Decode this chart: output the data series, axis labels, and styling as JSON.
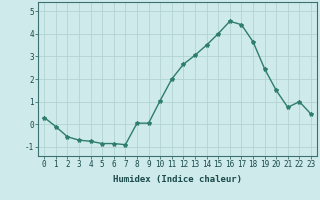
{
  "x": [
    0,
    1,
    2,
    3,
    4,
    5,
    6,
    7,
    8,
    9,
    10,
    11,
    12,
    13,
    14,
    15,
    16,
    17,
    18,
    19,
    20,
    21,
    22,
    23
  ],
  "y": [
    0.3,
    -0.1,
    -0.55,
    -0.7,
    -0.75,
    -0.85,
    -0.85,
    -0.9,
    0.05,
    0.05,
    1.05,
    2.0,
    2.65,
    3.05,
    3.5,
    4.0,
    4.55,
    4.4,
    3.65,
    2.45,
    1.5,
    0.75,
    1.0,
    0.45
  ],
  "line_color": "#2e7d6e",
  "marker": "*",
  "marker_size": 3,
  "bg_color": "#ceeaea",
  "grid_color": "#aed0d0",
  "xlabel": "Humidex (Indice chaleur)",
  "xlim": [
    -0.5,
    23.5
  ],
  "ylim": [
    -1.4,
    5.4
  ],
  "xticks": [
    0,
    1,
    2,
    3,
    4,
    5,
    6,
    7,
    8,
    9,
    10,
    11,
    12,
    13,
    14,
    15,
    16,
    17,
    18,
    19,
    20,
    21,
    22,
    23
  ],
  "yticks": [
    -1,
    0,
    1,
    2,
    3,
    4,
    5
  ],
  "tick_fontsize": 5.5,
  "xlabel_fontsize": 6.5,
  "line_width": 1.0,
  "spine_color": "#3d7070"
}
